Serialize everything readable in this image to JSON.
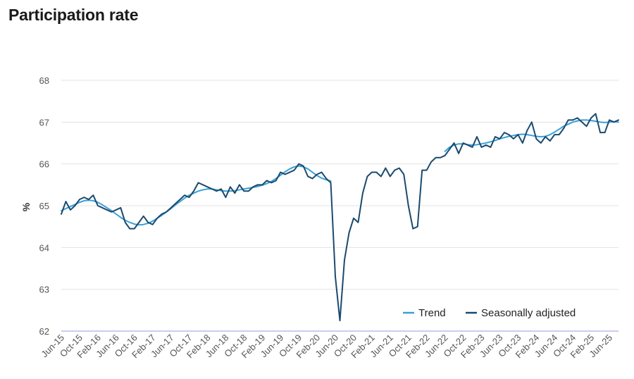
{
  "title": "Participation rate",
  "chart_data": {
    "type": "line",
    "title": "Participation rate",
    "xlabel": "",
    "ylabel": "%",
    "ylim": [
      62,
      68
    ],
    "yticks": [
      62,
      63,
      64,
      65,
      66,
      67,
      68
    ],
    "grid": true,
    "legend_position": "bottom-right",
    "x_start": "Jun-15",
    "xtick_labels": [
      "Jun-15",
      "Oct-15",
      "Feb-16",
      "Jun-16",
      "Oct-16",
      "Feb-17",
      "Jun-17",
      "Oct-17",
      "Feb-18",
      "Jun-18",
      "Oct-18",
      "Feb-19",
      "Jun-19",
      "Oct-19",
      "Feb-20",
      "Jun-20",
      "Oct-20",
      "Feb-21",
      "Jun-21",
      "Oct-21",
      "Feb-22",
      "Jun-22",
      "Oct-22",
      "Feb-23",
      "Jun-23",
      "Oct-23",
      "Feb-24",
      "Jun-24",
      "Oct-24",
      "Feb-25",
      "Jun-25"
    ],
    "colors": {
      "Trend": "#3aa0d8",
      "Seasonally adjusted": "#1b4a6e"
    },
    "series": [
      {
        "name": "Seasonally adjusted",
        "values": [
          64.8,
          65.1,
          64.9,
          65.0,
          65.15,
          65.2,
          65.15,
          65.25,
          65.0,
          64.95,
          64.9,
          64.85,
          64.9,
          64.95,
          64.6,
          64.45,
          64.45,
          64.6,
          64.75,
          64.6,
          64.55,
          64.7,
          64.8,
          64.85,
          64.95,
          65.05,
          65.15,
          65.25,
          65.2,
          65.35,
          65.55,
          65.5,
          65.45,
          65.4,
          65.35,
          65.4,
          65.2,
          65.45,
          65.3,
          65.5,
          65.35,
          65.35,
          65.45,
          65.5,
          65.5,
          65.6,
          65.55,
          65.6,
          65.8,
          65.75,
          65.8,
          65.85,
          66.0,
          65.95,
          65.7,
          65.65,
          65.75,
          65.8,
          65.65,
          65.55,
          63.3,
          62.25,
          63.7,
          64.35,
          64.7,
          64.6,
          65.3,
          65.7,
          65.8,
          65.8,
          65.7,
          65.9,
          65.7,
          65.85,
          65.9,
          65.75,
          65.0,
          64.45,
          64.5,
          65.85,
          65.85,
          66.05,
          66.15,
          66.15,
          66.2,
          66.35,
          66.5,
          66.25,
          66.5,
          66.45,
          66.4,
          66.65,
          66.4,
          66.45,
          66.4,
          66.65,
          66.6,
          66.75,
          66.7,
          66.6,
          66.7,
          66.5,
          66.8,
          67.0,
          66.6,
          66.5,
          66.65,
          66.55,
          66.7,
          66.7,
          66.85,
          67.05,
          67.05,
          67.1,
          67.0,
          66.9,
          67.1,
          67.2,
          66.75,
          66.75,
          67.05,
          67.0,
          67.05
        ]
      },
      {
        "name": "Trend",
        "start_index": 0,
        "values": [
          64.88,
          64.93,
          64.98,
          65.03,
          65.08,
          65.12,
          65.13,
          65.12,
          65.08,
          65.02,
          64.95,
          64.88,
          64.8,
          64.72,
          64.65,
          64.6,
          64.56,
          64.54,
          64.55,
          64.58,
          64.63,
          64.7,
          64.77,
          64.85,
          64.93,
          65.02,
          65.1,
          65.18,
          65.25,
          65.3,
          65.35,
          65.38,
          65.4,
          65.4,
          65.38,
          65.36,
          65.35,
          65.35,
          65.36,
          65.38,
          65.4,
          65.42,
          65.44,
          65.46,
          65.49,
          65.53,
          65.58,
          65.65,
          65.73,
          65.81,
          65.88,
          65.93,
          65.95,
          65.93,
          65.88,
          65.8,
          65.72,
          65.66,
          65.62,
          65.59
        ],
        "segment2_start_index": 84,
        "segment2_values": [
          66.3,
          66.4,
          66.45,
          66.48,
          66.48,
          66.46,
          66.45,
          66.46,
          66.48,
          66.5,
          66.53,
          66.56,
          66.6,
          66.63,
          66.66,
          66.68,
          66.7,
          66.71,
          66.7,
          66.68,
          66.66,
          66.65,
          66.66,
          66.7,
          66.76,
          66.83,
          66.9,
          66.95,
          67.0,
          67.03,
          67.05,
          67.05,
          67.04,
          67.02,
          67.0,
          66.99,
          67.0,
          67.01,
          67.0
        ]
      }
    ]
  }
}
